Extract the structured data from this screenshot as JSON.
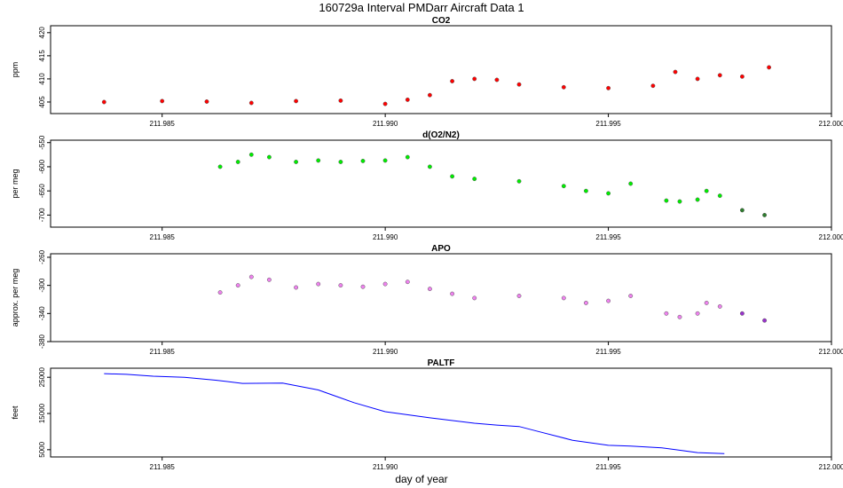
{
  "title": "160729a   Interval PMDarr Aircraft Data 1",
  "xlabel": "day of year",
  "colors": {
    "co2": "#ff0000",
    "o2n2": "#00ee00",
    "o2n2_dark": "#2e7d2e",
    "apo": "#ee82ee",
    "apo_dark": "#9932cc",
    "paltf": "#0000ff",
    "points": "#555555"
  },
  "chart_data": [
    {
      "type": "scatter",
      "title": "CO2",
      "ylabel": "ppm",
      "xlim": [
        211.9825,
        212.0
      ],
      "ylim": [
        402.5,
        421.5
      ],
      "xticks": [
        "211.985",
        "211.990",
        "211.995",
        "212.000"
      ],
      "xtick_values": [
        211.985,
        211.99,
        211.995,
        212.0
      ],
      "yticks": [
        "405",
        "410",
        "415",
        "420"
      ],
      "ytick_values": [
        405,
        410,
        415,
        420
      ],
      "series": [
        {
          "x": [
            211.9837,
            211.985,
            211.986,
            211.987,
            211.988,
            211.989,
            211.99,
            211.9905,
            211.991,
            211.9915,
            211.992,
            211.9925,
            211.993,
            211.994,
            211.995,
            211.996,
            211.9965,
            211.997,
            211.9975,
            211.998,
            211.9986
          ],
          "y": [
            405.0,
            405.2,
            405.1,
            404.8,
            405.2,
            405.3,
            404.6,
            405.5,
            406.5,
            409.5,
            410.0,
            409.8,
            408.8,
            408.2,
            408.0,
            408.5,
            411.5,
            410.0,
            410.8,
            410.5,
            412.5
          ]
        }
      ]
    },
    {
      "type": "scatter",
      "title": "d(O2/N2)",
      "ylabel": "per meg",
      "xlim": [
        211.9825,
        212.0
      ],
      "ylim": [
        -725,
        -545
      ],
      "xticks": [
        "211.985",
        "211.990",
        "211.995",
        "212.000"
      ],
      "xtick_values": [
        211.985,
        211.99,
        211.995,
        212.0
      ],
      "yticks": [
        "-550",
        "-600",
        "-650",
        "-700"
      ],
      "ytick_values": [
        -550,
        -600,
        -650,
        -700
      ],
      "series": [
        {
          "x": [
            211.9863,
            211.9867,
            211.987,
            211.9874,
            211.988,
            211.9885,
            211.989,
            211.9895,
            211.99,
            211.9905,
            211.991,
            211.9915,
            211.992,
            211.993,
            211.994,
            211.9945,
            211.995,
            211.9955,
            211.9963,
            211.9966,
            211.997,
            211.9972,
            211.9975,
            211.998,
            211.9985
          ],
          "y": [
            -600,
            -590,
            -575,
            -580,
            -590,
            -587,
            -590,
            -588,
            -587,
            -580,
            -600,
            -620,
            -625,
            -630,
            -640,
            -650,
            -655,
            -635,
            -670,
            -672,
            -668,
            -650,
            -660,
            -690,
            -700
          ]
        }
      ]
    },
    {
      "type": "scatter",
      "title": "APO",
      "ylabel": "approx. per meg",
      "xlim": [
        211.9825,
        212.0
      ],
      "ylim": [
        -380,
        -255
      ],
      "xticks": [
        "211.985",
        "211.990",
        "211.995",
        "212.000"
      ],
      "xtick_values": [
        211.985,
        211.99,
        211.995,
        212.0
      ],
      "yticks": [
        "-260",
        "-300",
        "-340",
        "-380"
      ],
      "ytick_values": [
        -260,
        -300,
        -340,
        -380
      ],
      "series": [
        {
          "x": [
            211.9863,
            211.9867,
            211.987,
            211.9874,
            211.988,
            211.9885,
            211.989,
            211.9895,
            211.99,
            211.9905,
            211.991,
            211.9915,
            211.992,
            211.993,
            211.994,
            211.9945,
            211.995,
            211.9955,
            211.9963,
            211.9966,
            211.997,
            211.9972,
            211.9975,
            211.998,
            211.9985
          ],
          "y": [
            -310,
            -300,
            -288,
            -292,
            -303,
            -298,
            -300,
            -302,
            -298,
            -295,
            -305,
            -312,
            -318,
            -315,
            -318,
            -325,
            -322,
            -315,
            -340,
            -345,
            -340,
            -325,
            -330,
            -340,
            -350
          ]
        }
      ]
    },
    {
      "type": "line",
      "title": "PALTF",
      "ylabel": "feet",
      "xlim": [
        211.9825,
        212.0
      ],
      "ylim": [
        3000,
        27500
      ],
      "xticks": [
        "211.985",
        "211.990",
        "211.995",
        "212.000"
      ],
      "xtick_values": [
        211.985,
        211.99,
        211.995,
        212.0
      ],
      "yticks": [
        "5000",
        "15000",
        "25000"
      ],
      "ytick_values": [
        5000,
        15000,
        25000
      ],
      "series": [
        {
          "x": [
            211.9837,
            211.9842,
            211.9848,
            211.9855,
            211.9862,
            211.9868,
            211.9877,
            211.9885,
            211.9893,
            211.99,
            211.991,
            211.992,
            211.9925,
            211.993,
            211.9935,
            211.9942,
            211.995,
            211.9955,
            211.9962,
            211.997,
            211.9976
          ],
          "y": [
            26000,
            25800,
            25300,
            25000,
            24200,
            23300,
            23400,
            21500,
            18000,
            15500,
            13800,
            12300,
            11800,
            11400,
            9800,
            7600,
            6200,
            6000,
            5500,
            4200,
            3900
          ]
        }
      ]
    }
  ]
}
